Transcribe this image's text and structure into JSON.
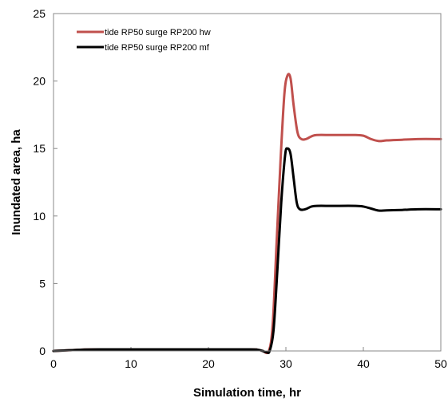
{
  "chart_data": {
    "type": "line",
    "title": "",
    "xlabel": "Simulation time, hr",
    "ylabel": "Inundated area, ha",
    "xlim": [
      0,
      50
    ],
    "ylim": [
      0,
      25
    ],
    "xticks": [
      0,
      10,
      20,
      30,
      40,
      50
    ],
    "yticks": [
      0,
      5,
      10,
      15,
      20,
      25
    ],
    "grid": false,
    "legend_position": "top-left",
    "series": [
      {
        "name": "tide RP50  surge RP200  hw",
        "color": "#c0504d",
        "points": [
          [
            0,
            0
          ],
          [
            2,
            0.05
          ],
          [
            4,
            0.1
          ],
          [
            6,
            0.12
          ],
          [
            10,
            0.12
          ],
          [
            20,
            0.12
          ],
          [
            25,
            0.12
          ],
          [
            26.3,
            0.1
          ],
          [
            27,
            0
          ],
          [
            27.8,
            0
          ],
          [
            28.3,
            2
          ],
          [
            28.8,
            8
          ],
          [
            29.3,
            14
          ],
          [
            29.8,
            19
          ],
          [
            30.2,
            20.4
          ],
          [
            30.6,
            20.2
          ],
          [
            31,
            18.2
          ],
          [
            31.5,
            16.2
          ],
          [
            32,
            15.7
          ],
          [
            32.6,
            15.7
          ],
          [
            33.3,
            15.9
          ],
          [
            34,
            16
          ],
          [
            36,
            16
          ],
          [
            39,
            16
          ],
          [
            40,
            15.95
          ],
          [
            41,
            15.7
          ],
          [
            42,
            15.55
          ],
          [
            43,
            15.6
          ],
          [
            45,
            15.65
          ],
          [
            47,
            15.7
          ],
          [
            50,
            15.7
          ]
        ]
      },
      {
        "name": "tide RP50  surge RP200  mf",
        "color": "#000000",
        "points": [
          [
            0,
            0
          ],
          [
            2,
            0.05
          ],
          [
            4,
            0.1
          ],
          [
            6,
            0.12
          ],
          [
            10,
            0.12
          ],
          [
            20,
            0.12
          ],
          [
            25,
            0.12
          ],
          [
            26.3,
            0.1
          ],
          [
            27,
            0
          ],
          [
            27.5,
            -0.1
          ],
          [
            27.9,
            0
          ],
          [
            28.4,
            1.5
          ],
          [
            28.9,
            6
          ],
          [
            29.4,
            11
          ],
          [
            29.9,
            14.5
          ],
          [
            30.2,
            15
          ],
          [
            30.6,
            14.6
          ],
          [
            31,
            12.8
          ],
          [
            31.4,
            11
          ],
          [
            31.8,
            10.5
          ],
          [
            32.5,
            10.5
          ],
          [
            33.3,
            10.7
          ],
          [
            34,
            10.75
          ],
          [
            36,
            10.75
          ],
          [
            39,
            10.75
          ],
          [
            40,
            10.7
          ],
          [
            41,
            10.55
          ],
          [
            42,
            10.4
          ],
          [
            43,
            10.42
          ],
          [
            45,
            10.45
          ],
          [
            47,
            10.5
          ],
          [
            50,
            10.5
          ]
        ]
      }
    ]
  }
}
